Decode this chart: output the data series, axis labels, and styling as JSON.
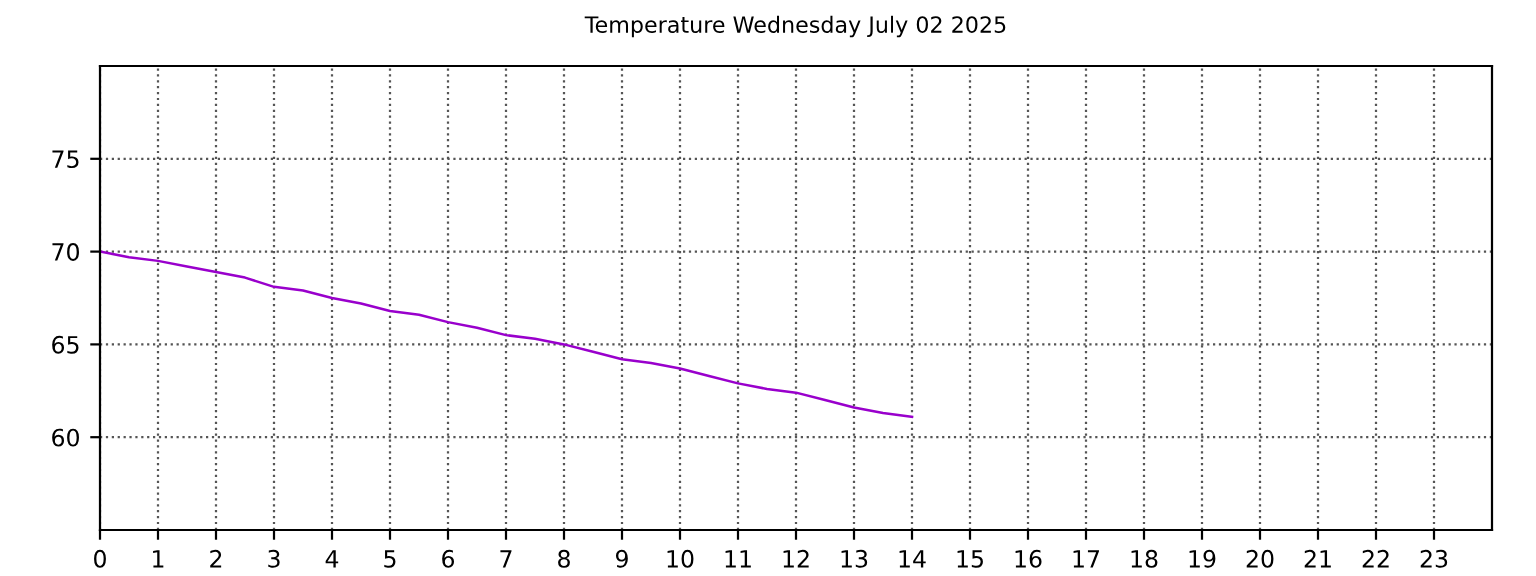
{
  "chart_data": {
    "type": "line",
    "title": "Temperature Wednesday July 02 2025",
    "x": [
      0,
      0.5,
      1,
      1.5,
      2,
      2.5,
      3,
      3.5,
      4,
      4.5,
      5,
      5.5,
      6,
      6.5,
      7,
      7.5,
      8,
      8.5,
      9,
      9.5,
      10,
      10.5,
      11,
      11.5,
      12,
      12.5,
      13,
      13.5,
      14
    ],
    "series": [
      {
        "color": "#9900cc",
        "values": [
          70.0,
          69.7,
          69.5,
          69.2,
          68.9,
          68.6,
          68.1,
          67.9,
          67.5,
          67.2,
          66.8,
          66.6,
          66.2,
          65.9,
          65.5,
          65.3,
          65.0,
          64.6,
          64.2,
          64.0,
          63.7,
          63.3,
          62.9,
          62.6,
          62.4,
          62.0,
          61.6,
          61.3,
          61.1
        ]
      }
    ],
    "xlim": [
      0,
      24
    ],
    "xticks": [
      0,
      1,
      2,
      3,
      4,
      5,
      6,
      7,
      8,
      9,
      10,
      11,
      12,
      13,
      14,
      15,
      16,
      17,
      18,
      19,
      20,
      21,
      22,
      23
    ],
    "ylim": [
      55,
      80
    ],
    "yticks": [
      60,
      65,
      70,
      75
    ],
    "grid": true,
    "line_style": "solid",
    "marker": "none"
  }
}
